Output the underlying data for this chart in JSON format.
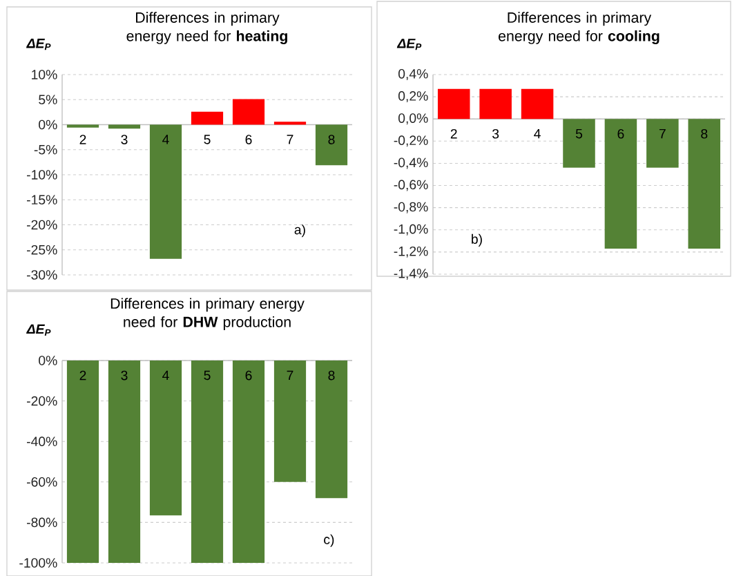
{
  "chart_data": [
    {
      "type": "bar",
      "title": "Differences in primary energy need for **heating**",
      "ylabel": "ΔE$_{P}$",
      "categories": [
        "2",
        "3",
        "4",
        "5",
        "6",
        "7",
        "8"
      ],
      "values": [
        -0.6,
        -0.8,
        -26.8,
        2.6,
        5.1,
        0.6,
        -8.1
      ],
      "colors": [
        "#548235",
        "#548235",
        "#548235",
        "#ff0000",
        "#ff0000",
        "#ff0000",
        "#548235"
      ],
      "ylim": [
        -30,
        10
      ],
      "yticks": [
        {
          "value": -30,
          "label": "-30%"
        },
        {
          "value": -25,
          "label": "-25%"
        },
        {
          "value": -20,
          "label": "-20%"
        },
        {
          "value": -15,
          "label": "-15%"
        },
        {
          "value": -10,
          "label": "-10%"
        },
        {
          "value": -5,
          "label": "-5%"
        },
        {
          "value": 0,
          "label": "0%"
        },
        {
          "value": 5,
          "label": "5%"
        },
        {
          "value": 10,
          "label": "10%"
        }
      ],
      "grid": "y",
      "annotations": [
        "a)"
      ]
    },
    {
      "type": "bar",
      "title": "Differences in primary energy need for **cooling**",
      "ylabel": "ΔE$_{P}$",
      "categories": [
        "2",
        "3",
        "4",
        "5",
        "6",
        "7",
        "8"
      ],
      "values": [
        0.27,
        0.27,
        0.27,
        -0.44,
        -1.17,
        -0.44,
        -1.17
      ],
      "colors": [
        "#ff0000",
        "#ff0000",
        "#ff0000",
        "#548235",
        "#548235",
        "#548235",
        "#548235"
      ],
      "ylim": [
        -1.4,
        0.4
      ],
      "yticks": [
        {
          "value": -1.4,
          "label": "-1,4%"
        },
        {
          "value": -1.2,
          "label": "-1,2%"
        },
        {
          "value": -1.0,
          "label": "-1,0%"
        },
        {
          "value": -0.8,
          "label": "-0,8%"
        },
        {
          "value": -0.6,
          "label": "-0,6%"
        },
        {
          "value": -0.4,
          "label": "-0,4%"
        },
        {
          "value": -0.2,
          "label": "-0,2%"
        },
        {
          "value": 0,
          "label": "0,0%"
        },
        {
          "value": 0.2,
          "label": "0,2%"
        },
        {
          "value": 0.4,
          "label": "0,4%"
        }
      ],
      "grid": "y",
      "annotations": [
        "b)"
      ]
    },
    {
      "type": "bar",
      "title": "Differences in primary energy need for **DHW** production",
      "ylabel": "ΔE$_{P}$",
      "categories": [
        "2",
        "3",
        "4",
        "5",
        "6",
        "7",
        "8"
      ],
      "values": [
        -100,
        -100,
        -76.5,
        -100,
        -100,
        -60,
        -68
      ],
      "colors": [
        "#548235",
        "#548235",
        "#548235",
        "#548235",
        "#548235",
        "#548235",
        "#548235"
      ],
      "ylim": [
        -100,
        0
      ],
      "yticks": [
        {
          "value": -100,
          "label": "-100%"
        },
        {
          "value": -80,
          "label": "-80%"
        },
        {
          "value": -60,
          "label": "-60%"
        },
        {
          "value": -40,
          "label": "-40%"
        },
        {
          "value": -20,
          "label": "-20%"
        },
        {
          "value": 0,
          "label": "0%"
        }
      ],
      "grid": "y",
      "annotations": [
        "c)"
      ]
    }
  ]
}
